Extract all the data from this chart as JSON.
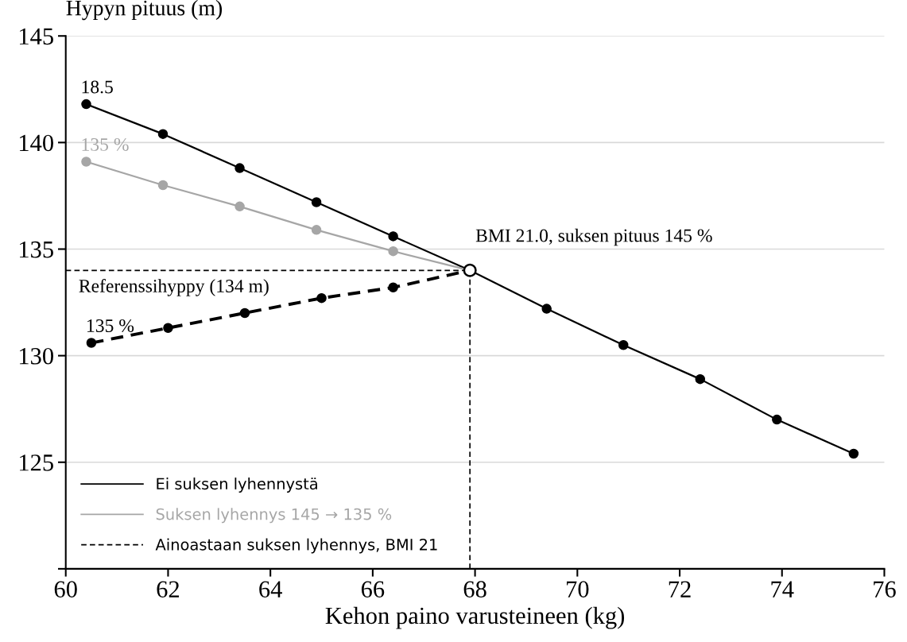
{
  "chart_data": {
    "type": "line",
    "ylabel": "Hypyn pituus (m)",
    "xlabel": "Kehon paino varusteineen (kg)",
    "xlim": [
      60,
      76
    ],
    "xticks": [
      60,
      62,
      64,
      66,
      68,
      70,
      72,
      74,
      76
    ],
    "ylim": [
      120,
      145
    ],
    "yticks": [
      {
        "value": 120,
        "label": null
      },
      125,
      130,
      135,
      140,
      145
    ],
    "grid": "y",
    "legend": "bottom left",
    "marker": "circle",
    "series": [
      {
        "name": "Ei suksen lyhennystä",
        "color": "#000000",
        "line_style": "solid",
        "x": [
          60.4,
          61.9,
          63.4,
          64.9,
          66.4,
          67.9,
          69.4,
          70.9,
          72.4,
          73.9,
          75.4
        ],
        "values": [
          141.8,
          140.4,
          138.8,
          137.2,
          135.6,
          134.0,
          132.2,
          130.5,
          128.9,
          127.0,
          125.4
        ]
      },
      {
        "name": "Suksen lyhennys 145 → 135 %",
        "color": "#a6a6a6",
        "line_style": "solid",
        "x": [
          60.4,
          61.9,
          63.4,
          64.9,
          66.4,
          67.9
        ],
        "values": [
          139.1,
          138.0,
          137.0,
          135.9,
          134.9,
          134.0
        ]
      },
      {
        "name": "Ainoastaan suksen lyhennys, BMI 21",
        "color": "#000000",
        "line_style": "dashed",
        "x": [
          60.5,
          62.0,
          63.5,
          65.0,
          66.4,
          67.9
        ],
        "values": [
          130.6,
          131.3,
          132.0,
          132.7,
          133.2,
          134.0
        ]
      },
      {
        "type": "scatter",
        "color": "#ffffff",
        "x": [
          67.9
        ],
        "values": [
          134.0
        ]
      }
    ],
    "ref_lines": [
      {
        "axis": "y",
        "value": 134,
        "label": "Referenssihyppy (134 m)",
        "line_style": "dashed",
        "color": "#000000"
      },
      {
        "axis": "x",
        "value": 67.9,
        "label": null,
        "line_style": "dashed",
        "color": "#000000"
      }
    ],
    "annotations": [
      {
        "text": "18.5",
        "x": 60.4,
        "y": 141.8
      },
      {
        "text": "135 %",
        "x": 60.4,
        "y": 139.1
      },
      {
        "text": "135 %",
        "x": 60.5,
        "y": 130.6
      },
      {
        "text": "BMI 21.0, suksen pituus 145 %",
        "x": 67.9,
        "y": 134.0
      }
    ]
  }
}
